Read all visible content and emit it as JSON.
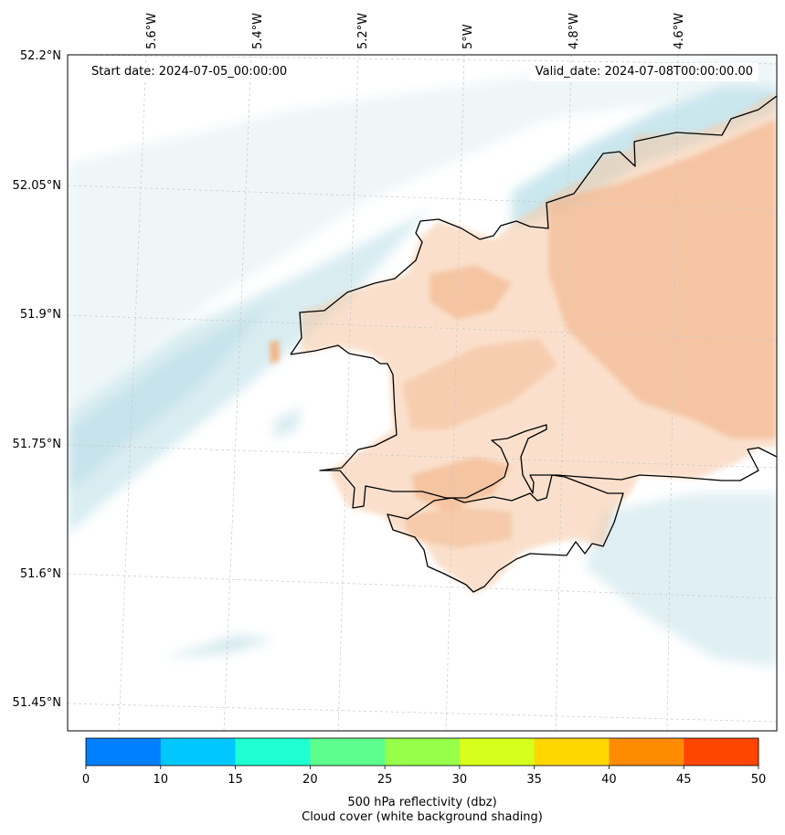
{
  "annotations": {
    "start_date": "Start date: 2024-07-05_00:00:00",
    "valid_date": "Valid_date: 2024-07-08T00:00:00.00"
  },
  "axes": {
    "lon_labels": [
      "5.6°W",
      "5.4°W",
      "5.2°W",
      "5°W",
      "4.8°W",
      "4.6°W"
    ],
    "lat_labels": [
      "52.2°N",
      "52.05°N",
      "51.9°N",
      "51.75°N",
      "51.6°N",
      "51.45°N"
    ],
    "gridlines": "dashed light grey"
  },
  "colorbar": {
    "tick_labels": [
      "0",
      "10",
      "15",
      "20",
      "25",
      "30",
      "35",
      "40",
      "45",
      "50"
    ],
    "bins": [
      {
        "from": 0,
        "to": 10,
        "color": "#0080ff"
      },
      {
        "from": 10,
        "to": 15,
        "color": "#00c8ff"
      },
      {
        "from": 15,
        "to": 20,
        "color": "#1effd2"
      },
      {
        "from": 20,
        "to": 25,
        "color": "#5cff8e"
      },
      {
        "from": 25,
        "to": 30,
        "color": "#96ff4a"
      },
      {
        "from": 30,
        "to": 35,
        "color": "#d7ff1e"
      },
      {
        "from": 35,
        "to": 40,
        "color": "#ffd700"
      },
      {
        "from": 40,
        "to": 45,
        "color": "#ff8c00"
      },
      {
        "from": 45,
        "to": 50,
        "color": "#ff4500"
      }
    ],
    "label_line1": "500 hPa reflectivity (dbz)",
    "label_line2": "Cloud cover (white background shading)"
  },
  "shading": {
    "land_color": "#f6c7a3",
    "cloud_light": "#eef6f8",
    "cloud_blue": "#cfe8ee",
    "coastline_color": "#000000"
  }
}
